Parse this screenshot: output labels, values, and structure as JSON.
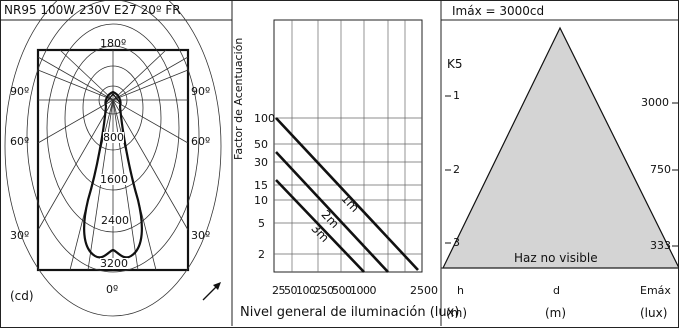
{
  "lamp_title": "NR95 100W 230V E27 20º FR",
  "polar": {
    "angle_top": "180º",
    "angle_left_90": "90º",
    "angle_right_90": "90º",
    "angle_left_60": "60º",
    "angle_right_60": "60º",
    "angle_left_30": "30º",
    "angle_right_30": "30º",
    "angle_bottom": "0º",
    "ring_800": "800",
    "ring_1600": "1600",
    "ring_2400": "2400",
    "ring_3200": "3200",
    "unit": "(cd)"
  },
  "accent_chart": {
    "ylabel": "Factor de Acentuación",
    "xlabel": "Nivel general de iluminación (lux)",
    "y_ticks": [
      "100",
      "50",
      "30",
      "15",
      "10",
      "5",
      "2"
    ],
    "x_ticks": [
      "25",
      "50",
      "100",
      "250",
      "500",
      "1000",
      "2500"
    ],
    "line_labels": [
      "1m",
      "2m",
      "3m"
    ]
  },
  "cone": {
    "imax": "Imáx = 3000cd",
    "k_label": "K5",
    "heights": [
      "1",
      "2",
      "3"
    ],
    "emax": [
      "3000",
      "750",
      "333"
    ],
    "no_visible": "Haz no visible",
    "col_h": "h",
    "col_d": "d",
    "col_emax": "Emáx",
    "unit_h": "(m)",
    "unit_d": "(m)",
    "unit_emax": "(lux)",
    "fill_color": "#d4d4d4"
  }
}
